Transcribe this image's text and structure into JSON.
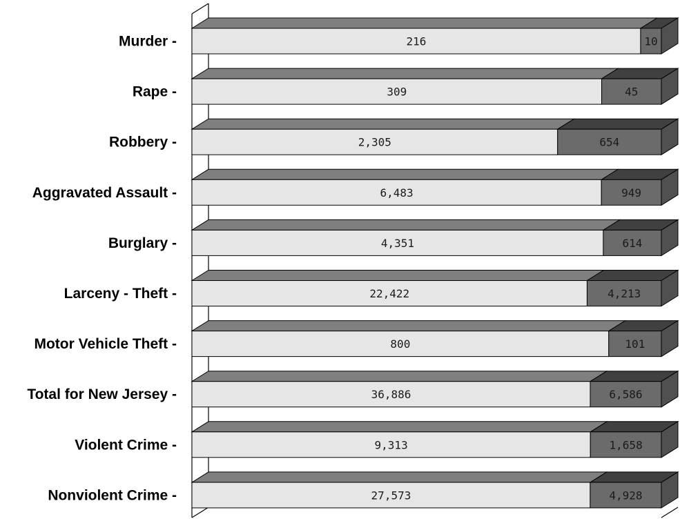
{
  "chart_data": {
    "type": "bar",
    "orientation": "horizontal",
    "stacked": true,
    "percent_stacked": true,
    "style": "3d",
    "title": "",
    "xlabel": "",
    "ylabel": "",
    "legend": "none",
    "grid": false,
    "categories": [
      "Murder -",
      "Rape -",
      "Robbery -",
      "Aggravated Assault -",
      "Burglary -",
      "Larceny - Theft -",
      "Motor Vehicle Theft -",
      "Total for New Jersey -",
      "Violent Crime -",
      "Nonviolent Crime -"
    ],
    "series": [
      {
        "values": [
          216,
          309,
          2305,
          6483,
          4351,
          22422,
          800,
          36886,
          9313,
          27573
        ],
        "labels": [
          "216",
          "309",
          "2,305",
          "6,483",
          "4,351",
          "22,422",
          "800",
          "36,886",
          "9,313",
          "27,573"
        ],
        "color": "#e6e6e6"
      },
      {
        "values": [
          10,
          45,
          654,
          949,
          614,
          4213,
          101,
          6586,
          1658,
          4928
        ],
        "labels": [
          "10",
          "45",
          "654",
          "949",
          "614",
          "4,213",
          "101",
          "6,586",
          "1,658",
          "4,928"
        ],
        "color": "#6b6b6b"
      }
    ]
  }
}
